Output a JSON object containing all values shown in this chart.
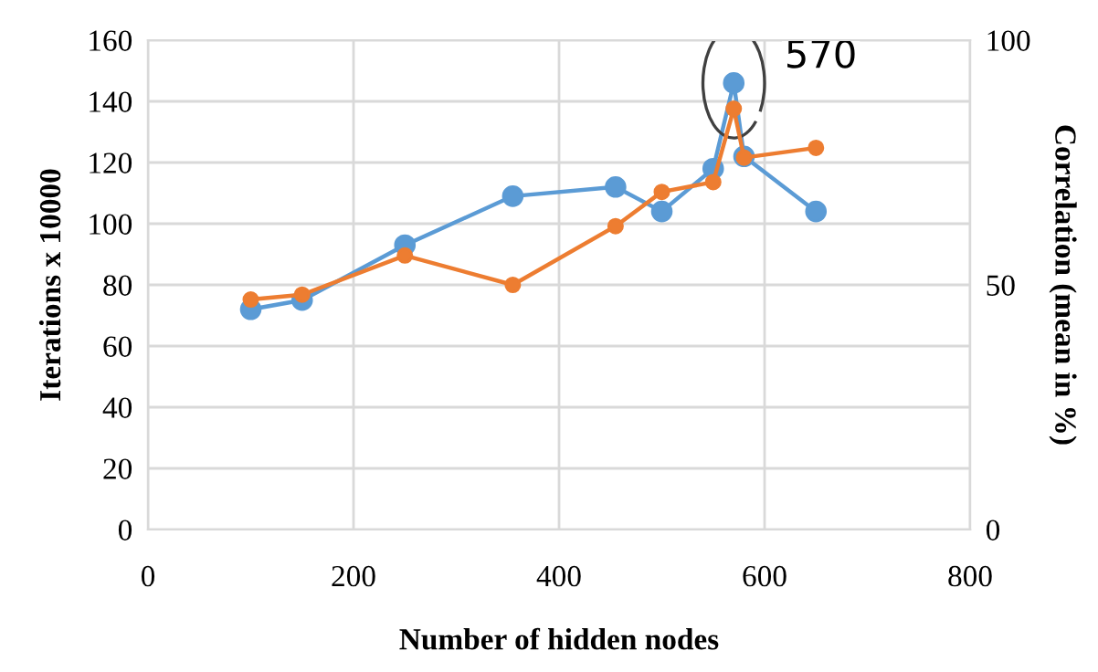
{
  "chart_data": {
    "type": "line",
    "xlabel": "Number of hidden nodes",
    "ylabel": "Iterations x 10000",
    "y2label": "Correlation (mean in %)",
    "xlim": [
      0,
      800
    ],
    "xticks": [
      0,
      200,
      400,
      600,
      800
    ],
    "ylim": [
      0,
      160
    ],
    "yticks": [
      0,
      20,
      40,
      60,
      80,
      100,
      120,
      140,
      160
    ],
    "y2lim": [
      0,
      100
    ],
    "y2ticks": [
      0,
      50,
      100
    ],
    "grid": true,
    "marker": "circle",
    "line_style": "solid",
    "series": [
      {
        "color": "#5b9bd5",
        "x": [
          100,
          150,
          250,
          355,
          455,
          500,
          550,
          570,
          580,
          650
        ],
        "values": [
          72,
          75,
          93,
          109,
          112,
          104,
          118,
          146,
          122,
          104
        ]
      },
      {
        "color": "#ed7d31",
        "axis": "y2",
        "x": [
          100,
          150,
          250,
          355,
          455,
          500,
          550,
          570,
          580,
          650
        ],
        "values": [
          47,
          48,
          56,
          50,
          62,
          69,
          71,
          86,
          76,
          78
        ]
      }
    ],
    "annotations": [
      {
        "text": "570",
        "x": 570,
        "y": 146
      }
    ]
  }
}
